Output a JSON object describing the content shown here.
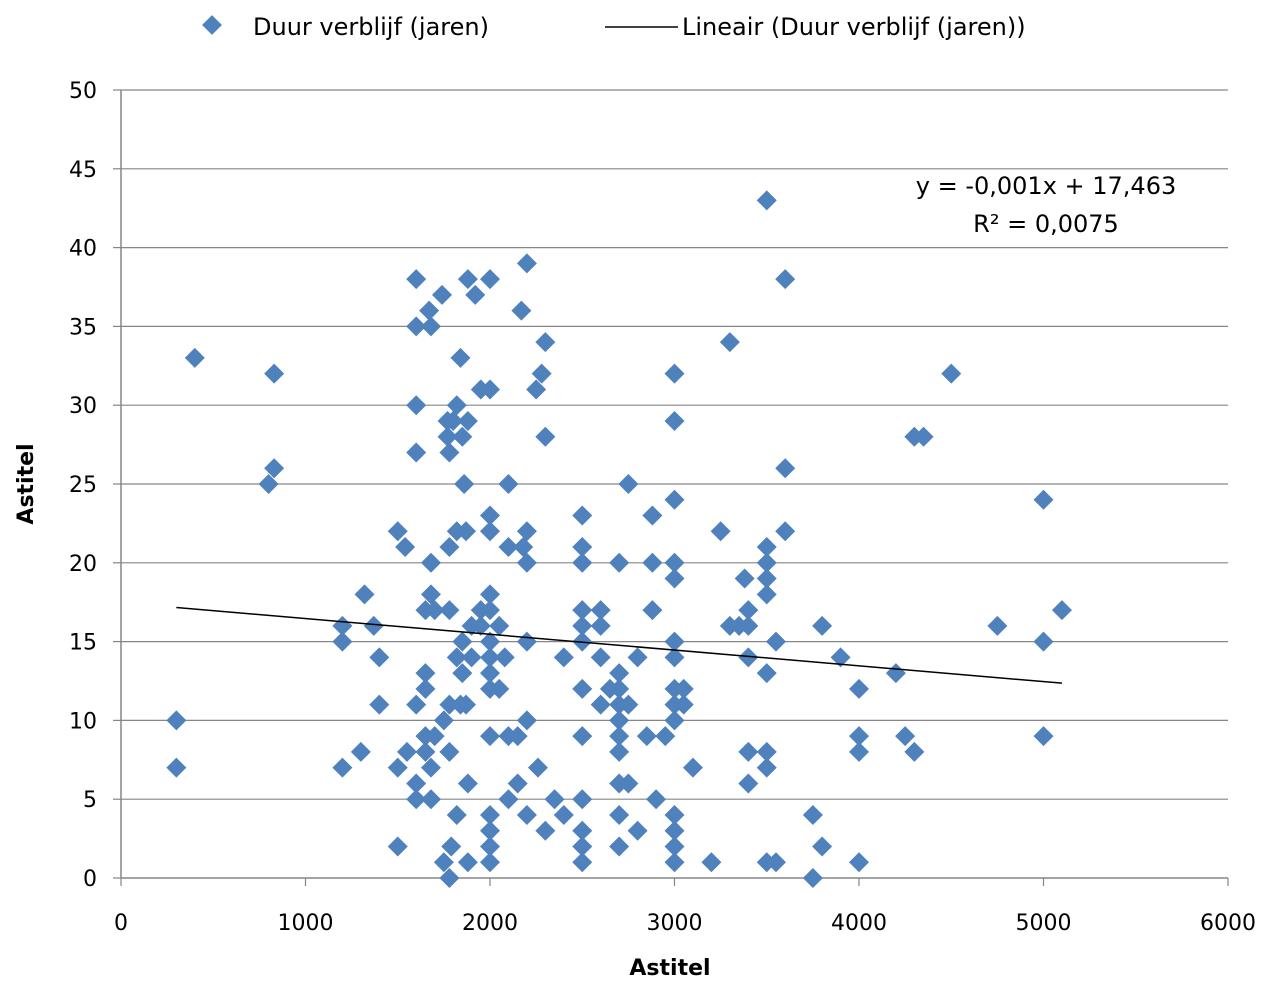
{
  "colors": {
    "marker": "#4F81BD",
    "trendline": "#000000",
    "grid": "#868686",
    "axis": "#868686"
  },
  "legend": {
    "series_label": "Duur verblijf (jaren)",
    "trend_label": "Lineair (Duur verblijf (jaren))"
  },
  "equation": {
    "line1": "y = -0,001x + 17,463",
    "line2": "R² = 0,0075"
  },
  "chart_data": {
    "type": "scatter",
    "title": "",
    "xlabel": "Astitel",
    "ylabel": "Astitel",
    "xlim": [
      0,
      6000
    ],
    "ylim": [
      0,
      50
    ],
    "xticks": [
      0,
      1000,
      2000,
      3000,
      4000,
      5000,
      6000
    ],
    "yticks": [
      0,
      5,
      10,
      15,
      20,
      25,
      30,
      35,
      40,
      45,
      50
    ],
    "xtick_labels": [
      "0",
      "1000",
      "2000",
      "3000",
      "4000",
      "5000",
      "6000"
    ],
    "ytick_labels": [
      "0",
      "5",
      "10",
      "15",
      "20",
      "25",
      "30",
      "35",
      "40",
      "45",
      "50"
    ],
    "grid": "horizontal",
    "legend_position": "top",
    "series": [
      {
        "name": "Duur verblijf (jaren)",
        "marker": "diamond",
        "points": [
          [
            300,
            10
          ],
          [
            300,
            7
          ],
          [
            400,
            33
          ],
          [
            800,
            25
          ],
          [
            830,
            26
          ],
          [
            830,
            32
          ],
          [
            1200,
            16
          ],
          [
            1200,
            15
          ],
          [
            1200,
            7
          ],
          [
            1300,
            8
          ],
          [
            1320,
            18
          ],
          [
            1370,
            16
          ],
          [
            1400,
            14
          ],
          [
            1400,
            11
          ],
          [
            1500,
            22
          ],
          [
            1500,
            7
          ],
          [
            1500,
            2
          ],
          [
            1540,
            21
          ],
          [
            1550,
            8
          ],
          [
            1600,
            38
          ],
          [
            1600,
            35
          ],
          [
            1600,
            30
          ],
          [
            1600,
            27
          ],
          [
            1600,
            11
          ],
          [
            1600,
            6
          ],
          [
            1600,
            5
          ],
          [
            1650,
            17
          ],
          [
            1650,
            13
          ],
          [
            1650,
            12
          ],
          [
            1650,
            9
          ],
          [
            1650,
            8
          ],
          [
            1670,
            36
          ],
          [
            1680,
            35
          ],
          [
            1680,
            20
          ],
          [
            1680,
            18
          ],
          [
            1680,
            7
          ],
          [
            1680,
            5
          ],
          [
            1700,
            17
          ],
          [
            1700,
            9
          ],
          [
            1740,
            37
          ],
          [
            1750,
            10
          ],
          [
            1750,
            1
          ],
          [
            1770,
            29
          ],
          [
            1770,
            28
          ],
          [
            1780,
            27
          ],
          [
            1780,
            21
          ],
          [
            1780,
            17
          ],
          [
            1780,
            11
          ],
          [
            1780,
            8
          ],
          [
            1780,
            0
          ],
          [
            1790,
            2
          ],
          [
            1800,
            29
          ],
          [
            1820,
            30
          ],
          [
            1820,
            22
          ],
          [
            1820,
            14
          ],
          [
            1820,
            4
          ],
          [
            1840,
            33
          ],
          [
            1840,
            11
          ],
          [
            1850,
            28
          ],
          [
            1850,
            15
          ],
          [
            1850,
            13
          ],
          [
            1860,
            25
          ],
          [
            1870,
            22
          ],
          [
            1870,
            11
          ],
          [
            1880,
            38
          ],
          [
            1880,
            29
          ],
          [
            1880,
            6
          ],
          [
            1880,
            1
          ],
          [
            1900,
            16
          ],
          [
            1900,
            14
          ],
          [
            1920,
            37
          ],
          [
            1950,
            31
          ],
          [
            1950,
            17
          ],
          [
            1950,
            16
          ],
          [
            2000,
            38
          ],
          [
            2000,
            31
          ],
          [
            2000,
            23
          ],
          [
            2000,
            22
          ],
          [
            2000,
            18
          ],
          [
            2000,
            17
          ],
          [
            2000,
            15
          ],
          [
            2000,
            14
          ],
          [
            2000,
            13
          ],
          [
            2000,
            12
          ],
          [
            2000,
            9
          ],
          [
            2000,
            4
          ],
          [
            2000,
            3
          ],
          [
            2000,
            2
          ],
          [
            2000,
            1
          ],
          [
            2050,
            16
          ],
          [
            2050,
            12
          ],
          [
            2080,
            14
          ],
          [
            2100,
            25
          ],
          [
            2100,
            21
          ],
          [
            2100,
            9
          ],
          [
            2100,
            5
          ],
          [
            2150,
            9
          ],
          [
            2150,
            6
          ],
          [
            2170,
            36
          ],
          [
            2180,
            21
          ],
          [
            2200,
            39
          ],
          [
            2200,
            22
          ],
          [
            2200,
            20
          ],
          [
            2200,
            15
          ],
          [
            2200,
            10
          ],
          [
            2200,
            4
          ],
          [
            2250,
            31
          ],
          [
            2260,
            7
          ],
          [
            2280,
            32
          ],
          [
            2300,
            34
          ],
          [
            2300,
            28
          ],
          [
            2300,
            3
          ],
          [
            2350,
            5
          ],
          [
            2400,
            14
          ],
          [
            2400,
            4
          ],
          [
            2500,
            23
          ],
          [
            2500,
            21
          ],
          [
            2500,
            20
          ],
          [
            2500,
            17
          ],
          [
            2500,
            16
          ],
          [
            2500,
            15
          ],
          [
            2500,
            12
          ],
          [
            2500,
            9
          ],
          [
            2500,
            5
          ],
          [
            2500,
            3
          ],
          [
            2500,
            2
          ],
          [
            2500,
            1
          ],
          [
            2600,
            17
          ],
          [
            2600,
            16
          ],
          [
            2600,
            14
          ],
          [
            2600,
            11
          ],
          [
            2650,
            12
          ],
          [
            2700,
            20
          ],
          [
            2700,
            13
          ],
          [
            2700,
            12
          ],
          [
            2700,
            11
          ],
          [
            2700,
            10
          ],
          [
            2700,
            9
          ],
          [
            2700,
            8
          ],
          [
            2700,
            6
          ],
          [
            2700,
            4
          ],
          [
            2700,
            2
          ],
          [
            2750,
            25
          ],
          [
            2750,
            11
          ],
          [
            2750,
            6
          ],
          [
            2800,
            14
          ],
          [
            2800,
            3
          ],
          [
            2850,
            9
          ],
          [
            2880,
            23
          ],
          [
            2880,
            20
          ],
          [
            2880,
            17
          ],
          [
            2900,
            5
          ],
          [
            2950,
            9
          ],
          [
            3000,
            32
          ],
          [
            3000,
            29
          ],
          [
            3000,
            24
          ],
          [
            3000,
            20
          ],
          [
            3000,
            19
          ],
          [
            3000,
            15
          ],
          [
            3000,
            14
          ],
          [
            3000,
            12
          ],
          [
            3000,
            11
          ],
          [
            3000,
            10
          ],
          [
            3000,
            4
          ],
          [
            3000,
            3
          ],
          [
            3000,
            2
          ],
          [
            3000,
            1
          ],
          [
            3050,
            12
          ],
          [
            3050,
            11
          ],
          [
            3100,
            7
          ],
          [
            3200,
            1
          ],
          [
            3250,
            22
          ],
          [
            3300,
            34
          ],
          [
            3300,
            16
          ],
          [
            3350,
            16
          ],
          [
            3380,
            19
          ],
          [
            3400,
            17
          ],
          [
            3400,
            16
          ],
          [
            3400,
            14
          ],
          [
            3400,
            8
          ],
          [
            3400,
            6
          ],
          [
            3500,
            43
          ],
          [
            3500,
            21
          ],
          [
            3500,
            20
          ],
          [
            3500,
            19
          ],
          [
            3500,
            18
          ],
          [
            3500,
            13
          ],
          [
            3500,
            8
          ],
          [
            3500,
            7
          ],
          [
            3500,
            1
          ],
          [
            3550,
            15
          ],
          [
            3550,
            1
          ],
          [
            3600,
            38
          ],
          [
            3600,
            26
          ],
          [
            3600,
            22
          ],
          [
            3750,
            4
          ],
          [
            3750,
            0
          ],
          [
            3800,
            16
          ],
          [
            3800,
            2
          ],
          [
            3900,
            14
          ],
          [
            4000,
            12
          ],
          [
            4000,
            9
          ],
          [
            4000,
            8
          ],
          [
            4000,
            1
          ],
          [
            4200,
            13
          ],
          [
            4250,
            9
          ],
          [
            4300,
            28
          ],
          [
            4300,
            8
          ],
          [
            4350,
            28
          ],
          [
            4500,
            32
          ],
          [
            4750,
            16
          ],
          [
            5000,
            24
          ],
          [
            5000,
            15
          ],
          [
            5000,
            9
          ],
          [
            5100,
            17
          ]
        ]
      }
    ],
    "trendline": {
      "name": "Lineair (Duur verblijf (jaren))",
      "slope": -0.001,
      "intercept": 17.463,
      "r2": 0.0075,
      "x_range": [
        300,
        5100
      ]
    }
  }
}
